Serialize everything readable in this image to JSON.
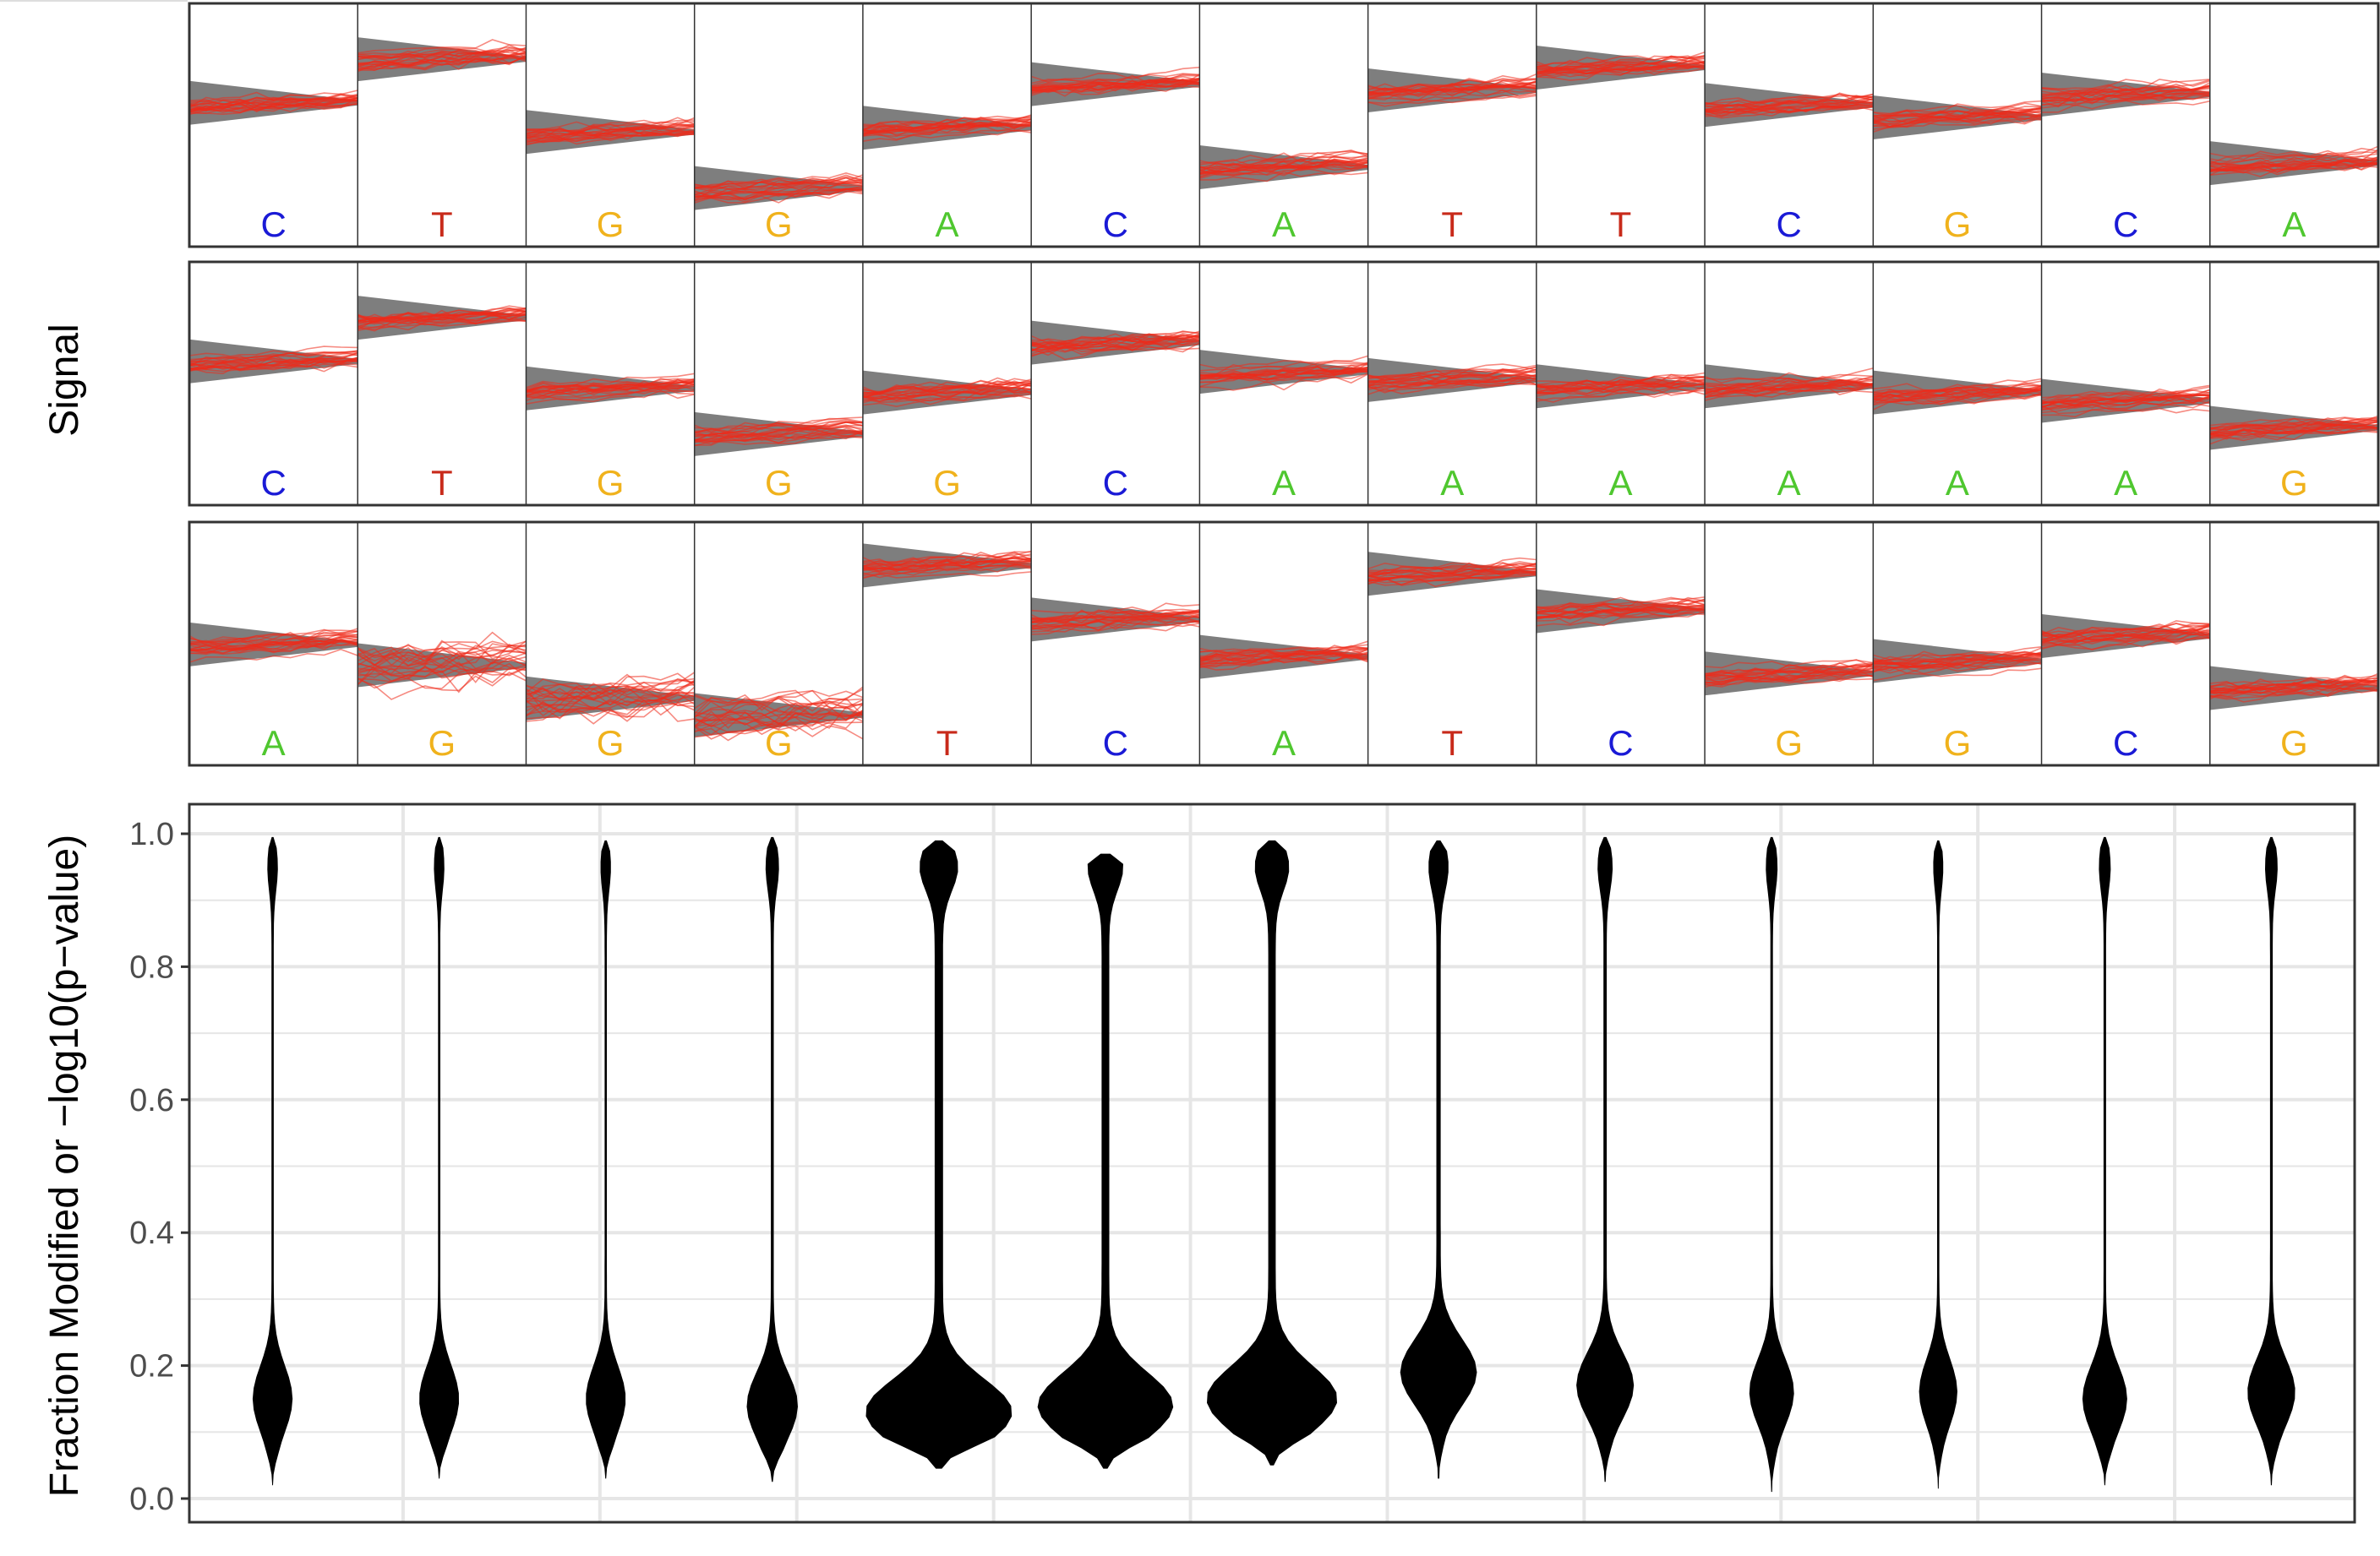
{
  "colors": {
    "A": "#4fc72f",
    "C": "#1a1ad6",
    "G": "#f0b21c",
    "T": "#c82a1a",
    "signal_trace": "#ee2a1a",
    "expected_signal": "#777777",
    "violin": "#000000",
    "grid": "#e6e6e6",
    "axis_text": "#4d4d4d"
  },
  "chart_data": [
    {
      "type": "line",
      "panel": "signal-top",
      "sequence": [
        "C",
        "T",
        "G",
        "G",
        "A",
        "C",
        "A",
        "T",
        "T",
        "C",
        "G",
        "C",
        "A"
      ],
      "expected_levels": [
        0.57,
        0.78,
        0.43,
        0.16,
        0.45,
        0.66,
        0.26,
        0.63,
        0.74,
        0.56,
        0.5,
        0.61,
        0.28
      ]
    },
    {
      "type": "line",
      "panel": "signal-middle",
      "sequence": [
        "C",
        "T",
        "G",
        "G",
        "G",
        "C",
        "A",
        "A",
        "A",
        "A",
        "A",
        "A",
        "G"
      ],
      "expected_levels": [
        0.57,
        0.78,
        0.44,
        0.22,
        0.42,
        0.66,
        0.52,
        0.48,
        0.45,
        0.45,
        0.42,
        0.38,
        0.25
      ]
    },
    {
      "type": "line",
      "panel": "signal-bottom",
      "sequence": [
        "A",
        "G",
        "G",
        "G",
        "T",
        "C",
        "A",
        "T",
        "C",
        "G",
        "G",
        "C",
        "G"
      ],
      "expected_levels": [
        0.46,
        0.36,
        0.2,
        0.12,
        0.84,
        0.58,
        0.4,
        0.8,
        0.62,
        0.32,
        0.38,
        0.5,
        0.25
      ]
    },
    {
      "type": "violin",
      "panel": "fraction-modified",
      "ylabel": "Fraction Modified or −log10(p−value)",
      "ylim": [
        0.0,
        1.0
      ],
      "yticks": [
        "0.0",
        "0.2",
        "0.4",
        "0.6",
        "0.8",
        "1.0"
      ],
      "positions": 13,
      "violins": [
        {
          "min": 0.02,
          "max": 0.995,
          "mode": 0.15,
          "max_half_width": 0.25
        },
        {
          "min": 0.03,
          "max": 0.995,
          "mode": 0.15,
          "max_half_width": 0.25
        },
        {
          "min": 0.03,
          "max": 0.99,
          "mode": 0.15,
          "max_half_width": 0.25
        },
        {
          "min": 0.025,
          "max": 0.995,
          "mode": 0.14,
          "max_half_width": 0.32
        },
        {
          "min": 0.045,
          "max": 0.99,
          "mode": 0.13,
          "max_half_width": 0.92
        },
        {
          "min": 0.045,
          "max": 0.97,
          "mode": 0.14,
          "max_half_width": 0.85
        },
        {
          "min": 0.05,
          "max": 0.99,
          "mode": 0.15,
          "max_half_width": 0.82
        },
        {
          "min": 0.03,
          "max": 0.99,
          "mode": 0.19,
          "max_half_width": 0.48
        },
        {
          "min": 0.025,
          "max": 0.995,
          "mode": 0.17,
          "max_half_width": 0.36
        },
        {
          "min": 0.01,
          "max": 0.995,
          "mode": 0.16,
          "max_half_width": 0.28
        },
        {
          "min": 0.015,
          "max": 0.99,
          "mode": 0.16,
          "max_half_width": 0.24
        },
        {
          "min": 0.02,
          "max": 0.995,
          "mode": 0.15,
          "max_half_width": 0.28
        },
        {
          "min": 0.02,
          "max": 0.995,
          "mode": 0.16,
          "max_half_width": 0.3
        }
      ]
    }
  ],
  "labels": {
    "signal_axis_title": "Signal",
    "violin_axis_title": "Fraction Modified or −log10(p−value)"
  }
}
